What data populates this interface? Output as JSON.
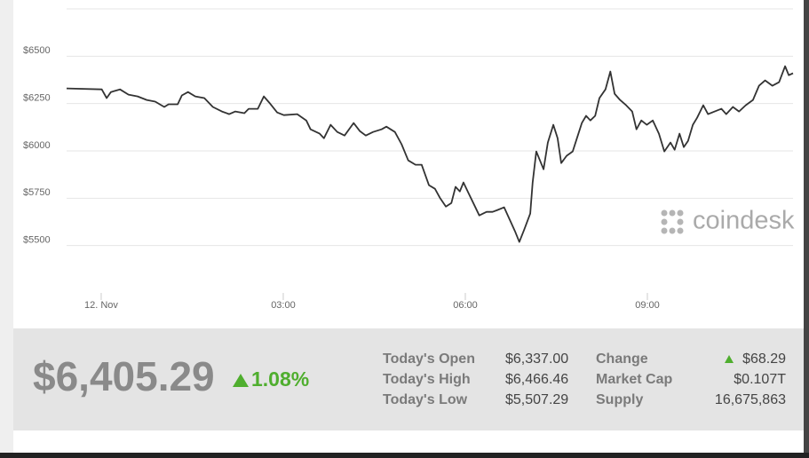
{
  "chart_data": {
    "type": "line",
    "x": [
      -0.57,
      0.01,
      0.09,
      0.16,
      0.31,
      0.45,
      0.6,
      0.75,
      0.89,
      1.04,
      1.11,
      1.26,
      1.33,
      1.43,
      1.55,
      1.7,
      1.84,
      1.99,
      2.11,
      2.21,
      2.36,
      2.43,
      2.58,
      2.68,
      2.77,
      2.9,
      3.01,
      3.23,
      3.38,
      3.45,
      3.6,
      3.67,
      3.78,
      3.89,
      4.01,
      4.16,
      4.26,
      4.36,
      4.48,
      4.62,
      4.7,
      4.84,
      4.95,
      5.06,
      5.18,
      5.28,
      5.4,
      5.5,
      5.58,
      5.68,
      5.77,
      5.84,
      5.91,
      5.97,
      6.06,
      6.16,
      6.23,
      6.35,
      6.45,
      6.53,
      6.64,
      6.72,
      6.82,
      6.89,
      6.97,
      7.07,
      7.11,
      7.17,
      7.23,
      7.29,
      7.36,
      7.45,
      7.52,
      7.58,
      7.67,
      7.77,
      7.84,
      7.92,
      7.99,
      8.06,
      8.14,
      8.21,
      8.31,
      8.39,
      8.46,
      8.55,
      8.65,
      8.75,
      8.82,
      8.9,
      8.99,
      9.09,
      9.19,
      9.28,
      9.38,
      9.45,
      9.53,
      9.6,
      9.67,
      9.75,
      9.82,
      9.92,
      10.0,
      10.11,
      10.22,
      10.3,
      10.41,
      10.51,
      10.62,
      10.74,
      10.84,
      10.94,
      11.06,
      11.17,
      11.27,
      11.33,
      11.4
    ],
    "values": [
      6330,
      6325,
      6279,
      6311,
      6325,
      6297,
      6288,
      6269,
      6260,
      6232,
      6246,
      6246,
      6293,
      6311,
      6288,
      6279,
      6232,
      6208,
      6194,
      6208,
      6199,
      6222,
      6222,
      6288,
      6255,
      6203,
      6189,
      6194,
      6161,
      6114,
      6091,
      6067,
      6138,
      6100,
      6081,
      6147,
      6105,
      6081,
      6100,
      6114,
      6128,
      6100,
      6035,
      5950,
      5927,
      5927,
      5819,
      5800,
      5753,
      5706,
      5725,
      5810,
      5786,
      5833,
      5772,
      5706,
      5659,
      5678,
      5678,
      5688,
      5702,
      5645,
      5575,
      5519,
      5584,
      5669,
      5833,
      5997,
      5950,
      5903,
      6044,
      6138,
      6067,
      5936,
      5974,
      5997,
      6067,
      6147,
      6185,
      6161,
      6185,
      6279,
      6325,
      6419,
      6302,
      6269,
      6241,
      6208,
      6114,
      6161,
      6138,
      6161,
      6091,
      5997,
      6044,
      6006,
      6091,
      6020,
      6053,
      6138,
      6175,
      6241,
      6194,
      6208,
      6222,
      6194,
      6232,
      6208,
      6241,
      6269,
      6344,
      6372,
      6344,
      6363,
      6447,
      6400,
      6410
    ],
    "color": "#333333",
    "xlim": [
      -0.57,
      11.4
    ],
    "xticks": [
      {
        "value": 0,
        "label": "12. Nov"
      },
      {
        "value": 3,
        "label": "03:00"
      },
      {
        "value": 6,
        "label": "06:00"
      },
      {
        "value": 9,
        "label": "09:00"
      }
    ],
    "ylim": [
      5250,
      6750
    ],
    "yticks": [
      {
        "value": 5500,
        "label": "$5500"
      },
      {
        "value": 5750,
        "label": "$5750"
      },
      {
        "value": 6000,
        "label": "$6000"
      },
      {
        "value": 6250,
        "label": "$6250"
      },
      {
        "value": 6500,
        "label": "$6500"
      }
    ],
    "grid": true,
    "watermark": "coindesk"
  },
  "summary": {
    "price": "$6,405.29",
    "change_pct": "1.08%",
    "rows": [
      [
        "Today's Open",
        "$6,337.00",
        "Change",
        "$68.29"
      ],
      [
        "Today's High",
        "$6,466.46",
        "Market Cap",
        "$0.107T"
      ],
      [
        "Today's Low",
        "$5,507.29",
        "Supply",
        "16,675,863"
      ]
    ]
  }
}
